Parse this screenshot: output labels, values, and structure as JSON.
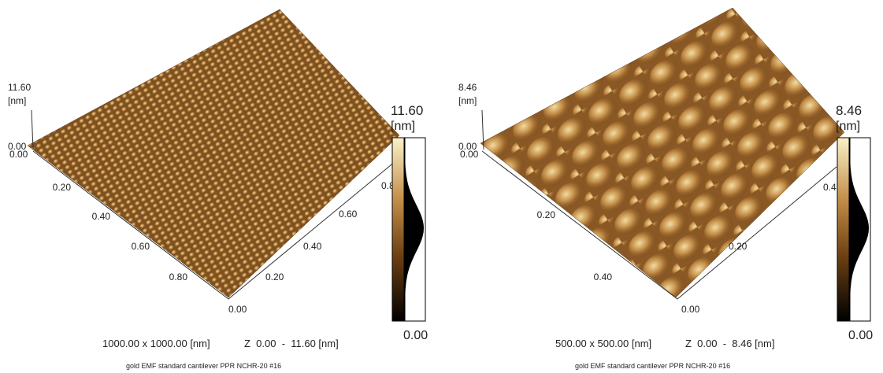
{
  "panels": [
    {
      "z_max": "11.60",
      "z_unit": "[nm]",
      "z_min_labels": [
        "0.00",
        "0.00"
      ],
      "left_axis_ticks": [
        "0.20",
        "0.40",
        "0.60",
        "0.80"
      ],
      "right_axis_ticks": [
        "0.00",
        "0.20",
        "0.40",
        "0.60",
        "0.8"
      ],
      "colorbar": {
        "max": "11.60",
        "unit": "[nm]",
        "min": "0.00"
      },
      "scan_size": "1000.00 x 1000.00 [nm]",
      "z_range": "Z  0.00  -  11.60 [nm]",
      "sample": "gold EMF standard cantilever PPR NCHR-20 #16"
    },
    {
      "z_max": "8.46",
      "z_unit": "[nm]",
      "z_min_labels": [
        "0.00",
        "0.00"
      ],
      "left_axis_ticks": [
        "0.20",
        "0.40"
      ],
      "right_axis_ticks": [
        "0.00",
        "0.20",
        "0.4"
      ],
      "colorbar": {
        "max": "8.46",
        "unit": "[nm]",
        "min": "0.00"
      },
      "scan_size": "500.00 x 500.00 [nm]",
      "z_range": "Z  0.00  -  8.46 [nm]",
      "sample": "gold EMF standard cantilever PPR NCHR-20 #16"
    }
  ]
}
